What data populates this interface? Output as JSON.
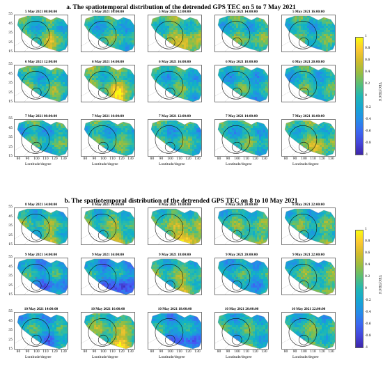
{
  "chart_data": [
    {
      "type": "heatmap",
      "title": "a. The spatiotemporal distribution of the detrended GPS TEC on 5 to 7 May 2021",
      "xlabel": "Lontitude/degree",
      "ylabel": "Latitude/degree",
      "xlim": [
        75,
        135
      ],
      "ylim": [
        15,
        55
      ],
      "x_ticks": [
        "80",
        "90",
        "100",
        "110",
        "120",
        "130"
      ],
      "y_ticks": [
        "55",
        "45",
        "35",
        "25",
        "15"
      ],
      "colorbar": {
        "label": "TEC/TECU",
        "range": [
          -1,
          1
        ],
        "ticks": [
          "1",
          "0.8",
          "0.6",
          "0.4",
          "0.2",
          "0",
          "-0.2",
          "-0.4",
          "-0.6",
          "-0.8",
          "-1"
        ]
      },
      "panels": [
        {
          "label": "5 May 2021 08:00:00",
          "anomaly": 0.35
        },
        {
          "label": "5 May 2021 10:00:00",
          "anomaly": 0.1
        },
        {
          "label": "5 May 2021 12:00:00",
          "anomaly": 0.55
        },
        {
          "label": "5 May 2021 14:00:00",
          "anomaly": 0.2
        },
        {
          "label": "5 May 2021 16:00:00",
          "anomaly": 0.1
        },
        {
          "label": "6 May 2021 12:00:00",
          "anomaly": 0.15
        },
        {
          "label": "6 May 2021 14:00:00",
          "anomaly": 0.6
        },
        {
          "label": "6 May 2021 16:00:00",
          "anomaly": 0.1
        },
        {
          "label": "6 May 2021 18:00:00",
          "anomaly": 0.0
        },
        {
          "label": "6 May 2021 20:00:00",
          "anomaly": 0.1
        },
        {
          "label": "7 May 2021 08:00:00",
          "anomaly": 0.05
        },
        {
          "label": "7 May 2021 10:00:00",
          "anomaly": 0.15
        },
        {
          "label": "7 May 2021 12:00:00",
          "anomaly": 0.1
        },
        {
          "label": "7 May 2021 14:00:00",
          "anomaly": 0.1
        },
        {
          "label": "7 May 2021 16:00:00",
          "anomaly": 0.45
        }
      ]
    },
    {
      "type": "heatmap",
      "title": "b. The spatiotemporal distribution of the detrended GPS TEC on 8 to 10 May 2021",
      "xlabel": "Lontitude/degree",
      "ylabel": "Latitude/degree",
      "xlim": [
        75,
        135
      ],
      "ylim": [
        15,
        55
      ],
      "x_ticks": [
        "80",
        "90",
        "100",
        "110",
        "120",
        "130"
      ],
      "y_ticks": [
        "55",
        "45",
        "35",
        "25",
        "15"
      ],
      "colorbar": {
        "label": "TEC/TECU",
        "range": [
          -1,
          1
        ],
        "ticks": [
          "1",
          "0.8",
          "0.6",
          "0.4",
          "0.2",
          "0",
          "-0.2",
          "-0.4",
          "-0.6",
          "-0.8",
          "-1"
        ]
      },
      "panels": [
        {
          "label": "8 May 2021 14:00:00",
          "anomaly": 0.3
        },
        {
          "label": "8 May 2021 16:00:00",
          "anomaly": 0.4
        },
        {
          "label": "8 May 2021 18:00:00",
          "anomaly": 0.7
        },
        {
          "label": "8 May 2021 20:00:00",
          "anomaly": 0.3
        },
        {
          "label": "8 May 2021 22:00:00",
          "anomaly": 0.2
        },
        {
          "label": "9 May 2021 14:00:00",
          "anomaly": -0.3
        },
        {
          "label": "9 May 2021 16:00:00",
          "anomaly": -0.5
        },
        {
          "label": "9 May 2021 18:00:00",
          "anomaly": 0.4
        },
        {
          "label": "9 May 2021 20:00:00",
          "anomaly": -0.1
        },
        {
          "label": "9 May 2021 22:00:00",
          "anomaly": 0.3
        },
        {
          "label": "10 May 2021 14:00:00",
          "anomaly": -0.2
        },
        {
          "label": "10 May 2021 16:00:00",
          "anomaly": 0.6
        },
        {
          "label": "10 May 2021 18:00:00",
          "anomaly": -0.4
        },
        {
          "label": "10 May 2021 20:00:00",
          "anomaly": 0.1
        },
        {
          "label": "10 May 2021 22:00:00",
          "anomaly": 0.2
        }
      ]
    }
  ]
}
